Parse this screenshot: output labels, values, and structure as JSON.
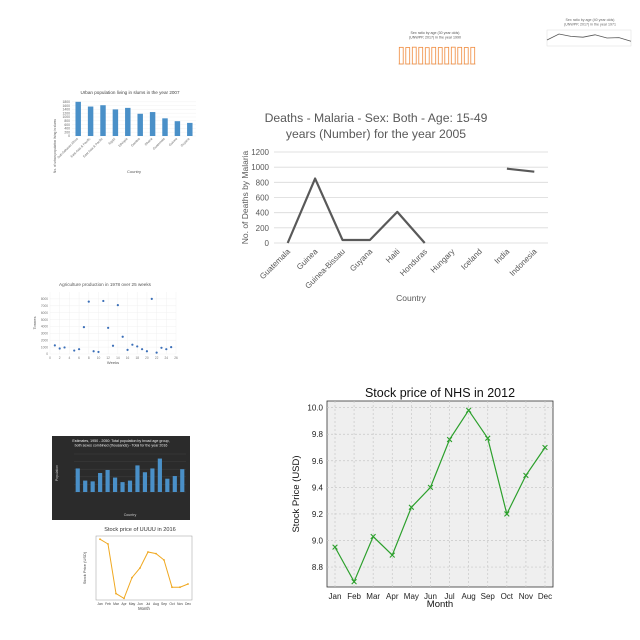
{
  "chart_data": [
    {
      "id": "sex_ratio_1990",
      "type": "bar",
      "title": "Sex ratio by age (30 year olds) (UNWPP, 2017) in the year 1990",
      "xlabel": "",
      "ylabel": "",
      "categories": [
        "",
        "",
        "",
        "",
        "",
        "",
        "",
        "",
        "",
        "",
        "",
        ""
      ],
      "values": [
        100,
        99,
        101,
        100,
        98,
        100,
        99,
        100,
        101,
        100,
        99,
        100
      ],
      "ylim": [
        0,
        120
      ],
      "color": "#f08a3c"
    },
    {
      "id": "sex_ratio_1971",
      "type": "line",
      "title": "Sex ratio by age (40 year olds) (UNWPP, 2017) in the year 1971",
      "xlabel": "",
      "ylabel": "",
      "categories": [
        "",
        "",
        "",
        "",
        "",
        "",
        "",
        ""
      ],
      "values": [
        95,
        110,
        104,
        102,
        108,
        100,
        101,
        92
      ],
      "ylim": [
        80,
        120
      ],
      "color": "#555555"
    },
    {
      "id": "slums_2007",
      "type": "bar",
      "title": "Urban population living in slums in the year 2007",
      "xlabel": "Country",
      "ylabel": "No. of urban population living in slums",
      "categories": [
        "Sub-Saharan Africa",
        "East Asia & Pacific",
        "East Asia & Pacific",
        "Egypt",
        "Ethiopia",
        "Gambia",
        "Ghana",
        "Guatemala",
        "Guinea",
        "Guyana"
      ],
      "values": [
        1800,
        1550,
        1620,
        1400,
        1480,
        1170,
        1260,
        930,
        780,
        690
      ],
      "ylim": [
        0,
        2000
      ],
      "yticks": [
        0,
        200,
        400,
        600,
        800,
        1000,
        1200,
        1400,
        1600,
        1800
      ],
      "color": "#4a90c8"
    },
    {
      "id": "malaria_2005",
      "type": "line",
      "title": "Deaths - Malaria - Sex: Both - Age: 15-49 years (Number) for the year 2005",
      "xlabel": "Country",
      "ylabel": "No. of Deaths by Malaria",
      "categories": [
        "Guatemala",
        "Guinea",
        "Guinea-Bissau",
        "Guyana",
        "Haiti",
        "Honduras",
        "Hungary",
        "Iceland",
        "India",
        "Indonesia"
      ],
      "series": [
        {
          "values": [
            0,
            850,
            40,
            40,
            410,
            0,
            null,
            null,
            980,
            940
          ]
        }
      ],
      "ylim": [
        0,
        1200
      ],
      "yticks": [
        0,
        200,
        400,
        600,
        800,
        1000,
        1200
      ],
      "color": "#595959"
    },
    {
      "id": "agri_1978",
      "type": "scatter",
      "title": "Agriculture production in 1978 over 25 weeks",
      "xlabel": "Weeks",
      "ylabel": "Tonnes",
      "x": [
        1,
        2,
        3,
        5,
        6,
        7,
        8,
        9,
        10,
        11,
        12,
        13,
        14,
        15,
        16,
        17,
        18,
        19,
        20,
        21,
        22,
        23,
        24,
        25
      ],
      "y": [
        1250,
        800,
        950,
        500,
        700,
        3900,
        7600,
        400,
        300,
        7700,
        3800,
        1200,
        7100,
        2500,
        600,
        1350,
        1100,
        700,
        400,
        8000,
        200,
        900,
        700,
        1000
      ],
      "xlim": [
        0,
        26
      ],
      "ylim": [
        0,
        9000
      ],
      "xticks": [
        0,
        2,
        4,
        6,
        8,
        10,
        12,
        14,
        16,
        18,
        20,
        22,
        24,
        26
      ],
      "yticks": [
        0,
        1000,
        2000,
        3000,
        4000,
        5000,
        6000,
        7000,
        8000
      ],
      "color": "#3b6fb8"
    },
    {
      "id": "estimates_2016",
      "type": "bar",
      "title": "Estimates, 1950 - 2050: Total population by broad age group, both sexes combined (thousands) - Total for the year 2016",
      "xlabel": "Country",
      "ylabel": "Population",
      "categories": [
        "",
        "",
        "",
        "",
        "",
        "",
        "",
        "",
        "",
        "",
        "",
        "",
        "",
        "",
        ""
      ],
      "values": [
        62,
        30,
        28,
        50,
        58,
        38,
        26,
        30,
        70,
        52,
        62,
        88,
        35,
        42,
        60
      ],
      "ylim": [
        0,
        100
      ],
      "color": "#4a90c8"
    },
    {
      "id": "uuuu_2016",
      "type": "line",
      "title": "Stock price of UUUU in 2016",
      "xlabel": "Month",
      "ylabel": "Stock Price (USD)",
      "categories": [
        "Jan",
        "Feb",
        "Mar",
        "Apr",
        "May",
        "Jun",
        "Jul",
        "Aug",
        "Sep",
        "Oct",
        "Nov",
        "Dec"
      ],
      "values": [
        3.4,
        3.25,
        1.7,
        1.55,
        2.2,
        2.5,
        3.0,
        2.95,
        2.75,
        1.9,
        1.9,
        2.0
      ],
      "ylim": [
        1.5,
        3.5
      ],
      "color": "#f0a820"
    },
    {
      "id": "nhs_2012",
      "type": "line",
      "title": "Stock price of NHS in 2012",
      "xlabel": "Month",
      "ylabel": "Stock Price (USD)",
      "categories": [
        "Jan",
        "Feb",
        "Mar",
        "Apr",
        "May",
        "Jun",
        "Jul",
        "Aug",
        "Sep",
        "Oct",
        "Nov",
        "Dec"
      ],
      "values": [
        8.95,
        8.69,
        9.03,
        8.89,
        9.25,
        9.4,
        9.76,
        9.98,
        9.77,
        9.2,
        9.49,
        9.7
      ],
      "ylim": [
        8.65,
        10.05
      ],
      "yticks": [
        "8.8",
        "9.0",
        "9.2",
        "9.4",
        "9.6",
        "9.8",
        "10.0"
      ],
      "grid": true,
      "marker": "x",
      "color": "#2ca02c"
    }
  ]
}
